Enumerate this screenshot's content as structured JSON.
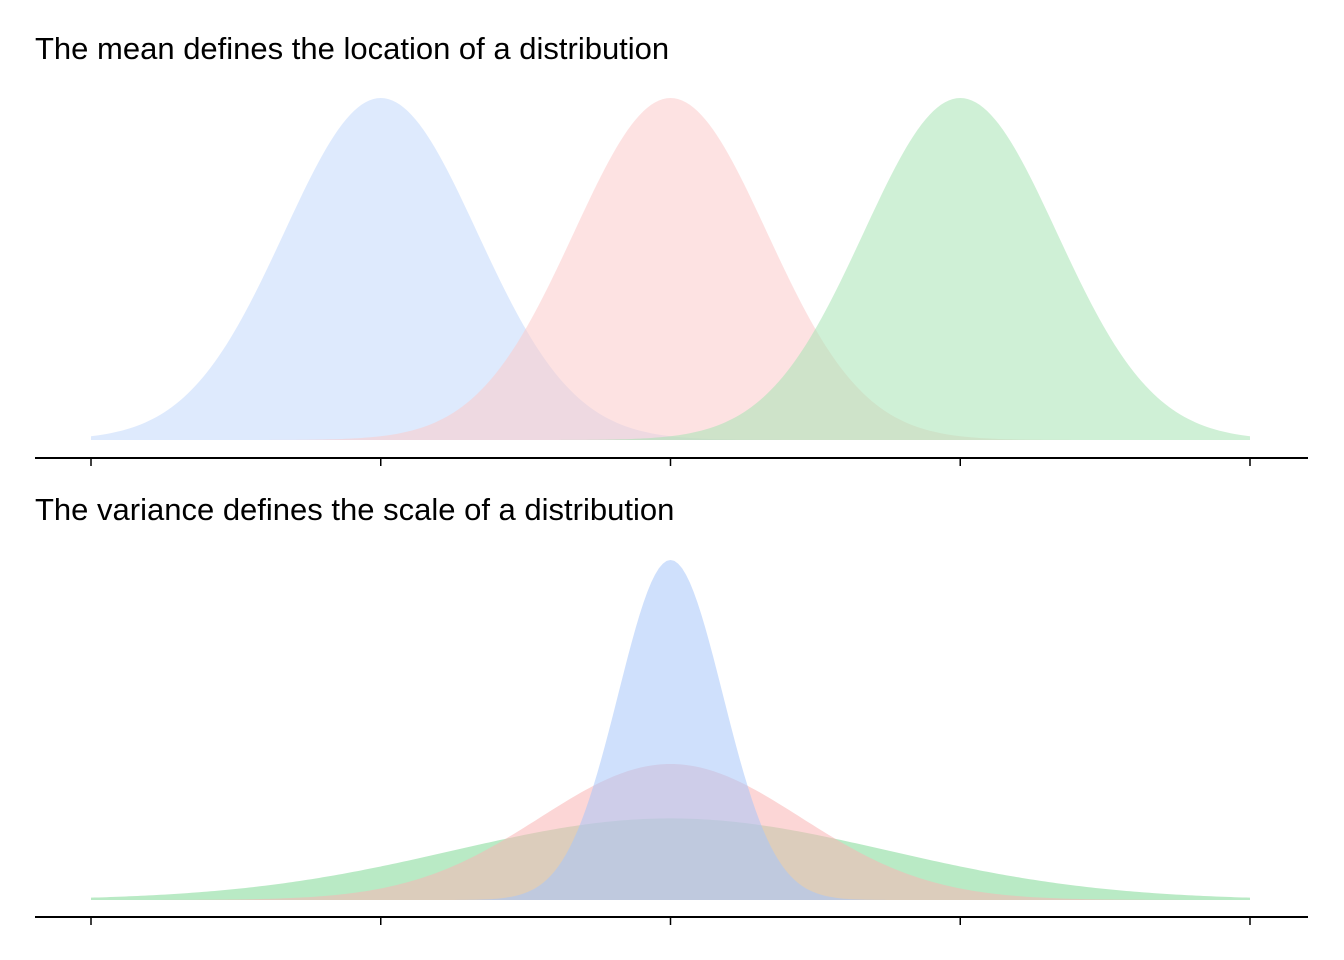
{
  "chart_data": [
    {
      "type": "area",
      "title": "The mean defines the location of a distribution",
      "xlabel": "",
      "ylabel": "",
      "xlim": [
        -2,
        2
      ],
      "xticks": [
        -2,
        -1,
        0,
        1,
        2
      ],
      "show_tick_labels": false,
      "grid": false,
      "legend": "none",
      "series": [
        {
          "distribution": "normal",
          "mean": -1,
          "sd": 0.3333,
          "color": "#C8DCFC",
          "opacity": 0.6
        },
        {
          "distribution": "normal",
          "mean": 0,
          "sd": 0.3333,
          "color": "#FCCACA",
          "opacity": 0.55
        },
        {
          "distribution": "normal",
          "mean": 1,
          "sd": 0.3333,
          "color": "#A7E4B5",
          "opacity": 0.55
        }
      ]
    },
    {
      "type": "area",
      "title": "The variance defines the scale of a distribution",
      "xlabel": "",
      "ylabel": "",
      "xlim": [
        -2,
        2
      ],
      "xticks": [
        -2,
        -1,
        0,
        1,
        2
      ],
      "show_tick_labels": false,
      "grid": false,
      "legend": "none",
      "series": [
        {
          "distribution": "normal",
          "mean": 0,
          "sd": 0.75,
          "color": "#80D896",
          "opacity": 0.55
        },
        {
          "distribution": "normal",
          "mean": 0,
          "sd": 0.45,
          "color": "#F9B4B4",
          "opacity": 0.55
        },
        {
          "distribution": "normal",
          "mean": 0,
          "sd": 0.18,
          "color": "#A8C6FA",
          "opacity": 0.55
        }
      ]
    }
  ]
}
